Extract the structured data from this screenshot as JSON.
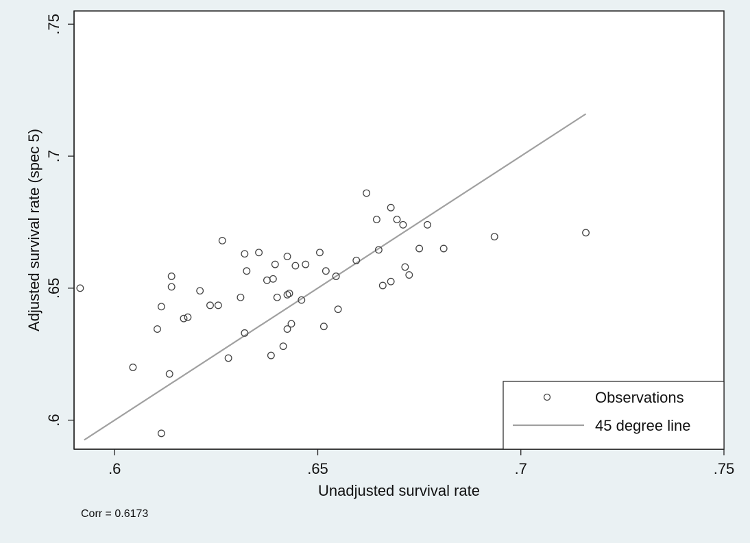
{
  "chart_data": {
    "type": "scatter",
    "xlabel": "Unadjusted survival rate",
    "ylabel": "Adjusted survival rate (spec 5)",
    "xlim": [
      0.59,
      0.75
    ],
    "ylim": [
      0.589,
      0.755
    ],
    "xticks": [
      0.6,
      0.65,
      0.7,
      0.75
    ],
    "xtick_labels": [
      ".6",
      ".65",
      ".7",
      ".75"
    ],
    "yticks": [
      0.6,
      0.65,
      0.7,
      0.75
    ],
    "ytick_labels": [
      ".6",
      ".65",
      ".7",
      ".75"
    ],
    "grid": false,
    "legend_position": "bottom-right",
    "note": "Corr = 0.6173",
    "colors": {
      "background": "#eaf1f3",
      "plot_background": "#ffffff",
      "line": "#a0a0a0",
      "marker": "#444444"
    },
    "series": [
      {
        "name": "Observations",
        "type": "scatter",
        "marker": "hollow-circle",
        "points": [
          [
            0.5915,
            0.65
          ],
          [
            0.6045,
            0.62
          ],
          [
            0.6105,
            0.6345
          ],
          [
            0.6115,
            0.643
          ],
          [
            0.6115,
            0.595
          ],
          [
            0.6135,
            0.6175
          ],
          [
            0.614,
            0.6505
          ],
          [
            0.614,
            0.6545
          ],
          [
            0.617,
            0.6385
          ],
          [
            0.618,
            0.639
          ],
          [
            0.621,
            0.649
          ],
          [
            0.6235,
            0.6435
          ],
          [
            0.6255,
            0.6435
          ],
          [
            0.6265,
            0.668
          ],
          [
            0.628,
            0.6235
          ],
          [
            0.631,
            0.6465
          ],
          [
            0.632,
            0.633
          ],
          [
            0.632,
            0.663
          ],
          [
            0.6325,
            0.6565
          ],
          [
            0.6355,
            0.6635
          ],
          [
            0.6375,
            0.653
          ],
          [
            0.6385,
            0.6245
          ],
          [
            0.639,
            0.6535
          ],
          [
            0.6395,
            0.659
          ],
          [
            0.64,
            0.6465
          ],
          [
            0.6415,
            0.628
          ],
          [
            0.6425,
            0.6475
          ],
          [
            0.6425,
            0.662
          ],
          [
            0.6425,
            0.6345
          ],
          [
            0.643,
            0.648
          ],
          [
            0.6435,
            0.6365
          ],
          [
            0.6445,
            0.6585
          ],
          [
            0.646,
            0.6455
          ],
          [
            0.647,
            0.659
          ],
          [
            0.6505,
            0.6635
          ],
          [
            0.6515,
            0.6355
          ],
          [
            0.652,
            0.6565
          ],
          [
            0.6545,
            0.6545
          ],
          [
            0.655,
            0.642
          ],
          [
            0.6595,
            0.6605
          ],
          [
            0.662,
            0.686
          ],
          [
            0.6645,
            0.676
          ],
          [
            0.665,
            0.6645
          ],
          [
            0.666,
            0.651
          ],
          [
            0.668,
            0.6525
          ],
          [
            0.668,
            0.6805
          ],
          [
            0.6695,
            0.676
          ],
          [
            0.671,
            0.674
          ],
          [
            0.6715,
            0.658
          ],
          [
            0.6725,
            0.655
          ],
          [
            0.675,
            0.665
          ],
          [
            0.677,
            0.674
          ],
          [
            0.681,
            0.665
          ],
          [
            0.6935,
            0.6695
          ],
          [
            0.716,
            0.671
          ]
        ]
      },
      {
        "name": "45 degree line",
        "type": "line",
        "points": [
          [
            0.5925,
            0.5925
          ],
          [
            0.716,
            0.716
          ]
        ]
      }
    ]
  }
}
